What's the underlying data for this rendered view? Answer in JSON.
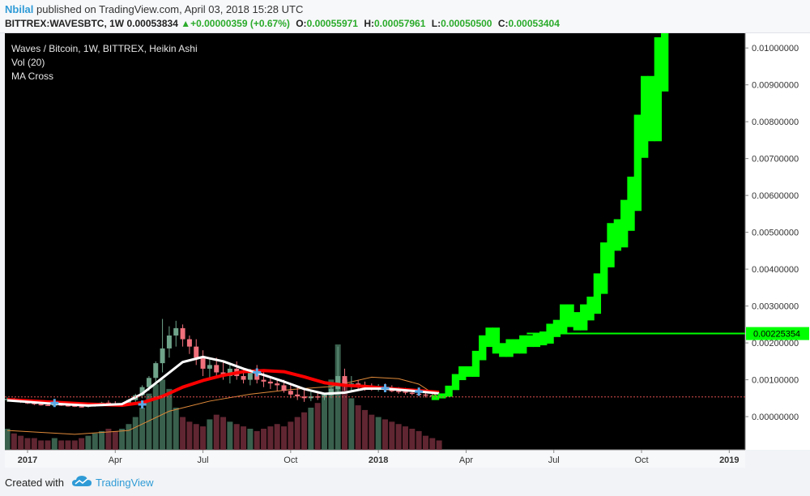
{
  "header": {
    "author": "Nbilal",
    "published": "published on TradingView.com, April 03, 2018 15:28 UTC",
    "symbol": "BITTREX:WAVESBTC, 1W",
    "price": "0.00053834",
    "change_arrow": "▲",
    "change": "+0.00000359 (+0.67%)",
    "o_label": "O:",
    "o_value": "0.00055971",
    "h_label": "H:",
    "h_value": "0.00057961",
    "l_label": "L:",
    "l_value": "0.00050500",
    "c_label": "C:",
    "c_value": "0.00053404"
  },
  "legend": {
    "title": "Waves / Bitcoin, 1W, BITTREX, Heikin Ashi",
    "vol": "Vol (20)",
    "ma": "MA Cross"
  },
  "footer": {
    "created": "Created with",
    "brand": "TradingView"
  },
  "colors": {
    "background": "#000000",
    "up": "#6fa38a",
    "down": "#f0707b",
    "projection": "#00ff00",
    "ma_fast": "#ffffff",
    "ma_slow": "#ff0000",
    "cross": "#5aa9e6",
    "vol_ma": "#e08a3a",
    "axis_text": "#333333"
  },
  "chart_data": {
    "type": "candlestick",
    "title": "Waves / Bitcoin, 1W, BITTREX, Heikin Ashi",
    "ylim": [
      -0.0009,
      0.0104
    ],
    "y_ticks": [
      "0.01000000",
      "0.00900000",
      "0.00800000",
      "0.00700000",
      "0.00600000",
      "0.00500000",
      "0.00400000",
      "0.00300000",
      "0.00200000",
      "0.00100000",
      "0.00000000"
    ],
    "y_tick_values": [
      0.01,
      0.009,
      0.008,
      0.007,
      0.006,
      0.005,
      0.004,
      0.003,
      0.002,
      0.001,
      0.0
    ],
    "x_ticks": [
      "2017",
      "Apr",
      "Jul",
      "Oct",
      "2018",
      "Apr",
      "Jul",
      "Oct",
      "2019"
    ],
    "x_tick_weeks": [
      3,
      16,
      29,
      42,
      55,
      68,
      81,
      94,
      107
    ],
    "current_price_line": 0.000534,
    "horizontal_level": {
      "value": 0.00225354,
      "label": "0.00225354",
      "from_week": 77
    },
    "candles": [
      {
        "t": 0,
        "o": 0.00045,
        "h": 0.00052,
        "l": 0.0004,
        "c": 0.00048
      },
      {
        "t": 1,
        "o": 0.00047,
        "h": 0.00051,
        "l": 0.00041,
        "c": 0.00043
      },
      {
        "t": 2,
        "o": 0.00043,
        "h": 0.00047,
        "l": 0.00037,
        "c": 0.00039
      },
      {
        "t": 3,
        "o": 0.00039,
        "h": 0.00043,
        "l": 0.00034,
        "c": 0.00037
      },
      {
        "t": 4,
        "o": 0.00037,
        "h": 0.0004,
        "l": 0.00031,
        "c": 0.00034
      },
      {
        "t": 5,
        "o": 0.00034,
        "h": 0.00038,
        "l": 0.0003,
        "c": 0.00032
      },
      {
        "t": 6,
        "o": 0.00032,
        "h": 0.00036,
        "l": 0.00029,
        "c": 0.00031
      },
      {
        "t": 7,
        "o": 0.00031,
        "h": 0.00035,
        "l": 0.00028,
        "c": 0.00033
      },
      {
        "t": 8,
        "o": 0.00033,
        "h": 0.00036,
        "l": 0.00029,
        "c": 0.00031
      },
      {
        "t": 9,
        "o": 0.00031,
        "h": 0.00034,
        "l": 0.00027,
        "c": 0.0003
      },
      {
        "t": 10,
        "o": 0.0003,
        "h": 0.00033,
        "l": 0.00026,
        "c": 0.00028
      },
      {
        "t": 11,
        "o": 0.00028,
        "h": 0.00032,
        "l": 0.00025,
        "c": 0.00027
      },
      {
        "t": 12,
        "o": 0.00027,
        "h": 0.00031,
        "l": 0.00024,
        "c": 0.0003
      },
      {
        "t": 13,
        "o": 0.0003,
        "h": 0.00036,
        "l": 0.00027,
        "c": 0.00034
      },
      {
        "t": 14,
        "o": 0.00034,
        "h": 0.0004,
        "l": 0.0003,
        "c": 0.00038
      },
      {
        "t": 15,
        "o": 0.00038,
        "h": 0.00044,
        "l": 0.00033,
        "c": 0.00036
      },
      {
        "t": 16,
        "o": 0.00036,
        "h": 0.00042,
        "l": 0.00029,
        "c": 0.00031
      },
      {
        "t": 17,
        "o": 0.00031,
        "h": 0.00037,
        "l": 0.00027,
        "c": 0.00035
      },
      {
        "t": 18,
        "o": 0.00035,
        "h": 0.00048,
        "l": 0.00032,
        "c": 0.00045
      },
      {
        "t": 19,
        "o": 0.00045,
        "h": 0.00062,
        "l": 0.0004,
        "c": 0.00058
      },
      {
        "t": 20,
        "o": 0.00058,
        "h": 0.00085,
        "l": 0.0005,
        "c": 0.0008
      },
      {
        "t": 21,
        "o": 0.0008,
        "h": 0.0011,
        "l": 0.0007,
        "c": 0.00105
      },
      {
        "t": 22,
        "o": 0.00105,
        "h": 0.0015,
        "l": 0.00095,
        "c": 0.00145
      },
      {
        "t": 23,
        "o": 0.00145,
        "h": 0.00265,
        "l": 0.0012,
        "c": 0.00185
      },
      {
        "t": 24,
        "o": 0.00185,
        "h": 0.00245,
        "l": 0.0016,
        "c": 0.0022
      },
      {
        "t": 25,
        "o": 0.0022,
        "h": 0.0026,
        "l": 0.0019,
        "c": 0.0024
      },
      {
        "t": 26,
        "o": 0.0024,
        "h": 0.0025,
        "l": 0.0019,
        "c": 0.0021
      },
      {
        "t": 27,
        "o": 0.0021,
        "h": 0.0022,
        "l": 0.0017,
        "c": 0.0019
      },
      {
        "t": 28,
        "o": 0.0019,
        "h": 0.0021,
        "l": 0.0014,
        "c": 0.0016
      },
      {
        "t": 29,
        "o": 0.0016,
        "h": 0.0018,
        "l": 0.0011,
        "c": 0.0013
      },
      {
        "t": 30,
        "o": 0.0013,
        "h": 0.0016,
        "l": 0.001,
        "c": 0.0014
      },
      {
        "t": 31,
        "o": 0.0014,
        "h": 0.0016,
        "l": 0.0011,
        "c": 0.0012
      },
      {
        "t": 32,
        "o": 0.0012,
        "h": 0.0015,
        "l": 0.001,
        "c": 0.0011
      },
      {
        "t": 33,
        "o": 0.0011,
        "h": 0.0014,
        "l": 0.0009,
        "c": 0.0013
      },
      {
        "t": 34,
        "o": 0.0013,
        "h": 0.0015,
        "l": 0.001,
        "c": 0.0011
      },
      {
        "t": 35,
        "o": 0.0011,
        "h": 0.0013,
        "l": 0.0009,
        "c": 0.001
      },
      {
        "t": 36,
        "o": 0.001,
        "h": 0.0013,
        "l": 0.00085,
        "c": 0.0012
      },
      {
        "t": 37,
        "o": 0.0012,
        "h": 0.0014,
        "l": 0.0009,
        "c": 0.001
      },
      {
        "t": 38,
        "o": 0.001,
        "h": 0.0012,
        "l": 0.0008,
        "c": 0.00095
      },
      {
        "t": 39,
        "o": 0.00095,
        "h": 0.0011,
        "l": 0.00075,
        "c": 0.0009
      },
      {
        "t": 40,
        "o": 0.0009,
        "h": 0.001,
        "l": 0.0007,
        "c": 0.00085
      },
      {
        "t": 41,
        "o": 0.00085,
        "h": 0.001,
        "l": 0.00065,
        "c": 0.0007
      },
      {
        "t": 42,
        "o": 0.0007,
        "h": 0.0009,
        "l": 0.0005,
        "c": 0.0006
      },
      {
        "t": 43,
        "o": 0.0006,
        "h": 0.0008,
        "l": 0.00045,
        "c": 0.00055
      },
      {
        "t": 44,
        "o": 0.00055,
        "h": 0.00075,
        "l": 0.0004,
        "c": 0.0005
      },
      {
        "t": 45,
        "o": 0.0005,
        "h": 0.0007,
        "l": 0.00042,
        "c": 0.00055
      },
      {
        "t": 46,
        "o": 0.00055,
        "h": 0.00068,
        "l": 0.00045,
        "c": 0.00052
      },
      {
        "t": 47,
        "o": 0.00052,
        "h": 0.00065,
        "l": 0.00045,
        "c": 0.00058
      },
      {
        "t": 48,
        "o": 0.00058,
        "h": 0.0008,
        "l": 0.0005,
        "c": 0.00075
      },
      {
        "t": 49,
        "o": 0.00075,
        "h": 0.0019,
        "l": 0.0006,
        "c": 0.0011
      },
      {
        "t": 50,
        "o": 0.0011,
        "h": 0.0013,
        "l": 0.0007,
        "c": 0.00085
      },
      {
        "t": 51,
        "o": 0.00085,
        "h": 0.0011,
        "l": 0.0007,
        "c": 0.0009
      },
      {
        "t": 52,
        "o": 0.0009,
        "h": 0.001,
        "l": 0.00075,
        "c": 0.00082
      },
      {
        "t": 53,
        "o": 0.00082,
        "h": 0.00095,
        "l": 0.0007,
        "c": 0.00078
      },
      {
        "t": 54,
        "o": 0.00078,
        "h": 0.0009,
        "l": 0.0007,
        "c": 0.00075
      },
      {
        "t": 55,
        "o": 0.00075,
        "h": 0.00088,
        "l": 0.00068,
        "c": 0.0008
      },
      {
        "t": 56,
        "o": 0.0008,
        "h": 0.0009,
        "l": 0.0007,
        "c": 0.00072
      },
      {
        "t": 57,
        "o": 0.00072,
        "h": 0.00085,
        "l": 0.00066,
        "c": 0.0007
      },
      {
        "t": 58,
        "o": 0.0007,
        "h": 0.0008,
        "l": 0.00062,
        "c": 0.00068
      },
      {
        "t": 59,
        "o": 0.00068,
        "h": 0.00078,
        "l": 0.0006,
        "c": 0.00065
      },
      {
        "t": 60,
        "o": 0.00065,
        "h": 0.00075,
        "l": 0.00058,
        "c": 0.00062
      },
      {
        "t": 61,
        "o": 0.00062,
        "h": 0.00072,
        "l": 0.00055,
        "c": 0.0006
      },
      {
        "t": 62,
        "o": 0.0006,
        "h": 0.0007,
        "l": 0.00052,
        "c": 0.00058
      },
      {
        "t": 63,
        "o": 0.00058,
        "h": 0.00068,
        "l": 0.0005,
        "c": 0.00056
      },
      {
        "t": 64,
        "o": 0.00056,
        "h": 0.00058,
        "l": 0.0005,
        "c": 0.00053
      }
    ],
    "volume": [
      9,
      7,
      6,
      5,
      5,
      4,
      4,
      5,
      4,
      4,
      4,
      5,
      6,
      7,
      8,
      9,
      8,
      9,
      11,
      14,
      18,
      24,
      28,
      30,
      26,
      18,
      14,
      12,
      11,
      10,
      13,
      15,
      14,
      12,
      11,
      10,
      9,
      8,
      9,
      10,
      11,
      10,
      12,
      14,
      16,
      18,
      20,
      24,
      30,
      45,
      30,
      22,
      19,
      17,
      15,
      14,
      13,
      12,
      11,
      10,
      9,
      8,
      6,
      5,
      4
    ],
    "volume_up": [
      true,
      false,
      false,
      false,
      false,
      false,
      false,
      true,
      false,
      false,
      false,
      false,
      true,
      true,
      true,
      false,
      false,
      true,
      true,
      true,
      true,
      true,
      true,
      true,
      true,
      true,
      false,
      false,
      false,
      false,
      true,
      false,
      false,
      true,
      false,
      false,
      true,
      false,
      false,
      false,
      false,
      false,
      false,
      false,
      false,
      true,
      false,
      true,
      true,
      true,
      false,
      true,
      false,
      false,
      false,
      true,
      false,
      false,
      false,
      false,
      false,
      false,
      false,
      false,
      false
    ],
    "ma_fast": [
      [
        0,
        0.00044
      ],
      [
        6,
        0.00036
      ],
      [
        12,
        0.0003
      ],
      [
        17,
        0.00034
      ],
      [
        20,
        0.00062
      ],
      [
        23,
        0.00105
      ],
      [
        26,
        0.00148
      ],
      [
        29,
        0.00162
      ],
      [
        32,
        0.0015
      ],
      [
        35,
        0.0013
      ],
      [
        38,
        0.00113
      ],
      [
        41,
        0.00095
      ],
      [
        44,
        0.00075
      ],
      [
        47,
        0.00062
      ],
      [
        50,
        0.00065
      ],
      [
        53,
        0.00076
      ],
      [
        56,
        0.00076
      ],
      [
        60,
        0.0007
      ],
      [
        64,
        0.00063
      ]
    ],
    "ma_slow": [
      [
        0,
        0.00046
      ],
      [
        6,
        0.0004
      ],
      [
        12,
        0.00034
      ],
      [
        17,
        0.00031
      ],
      [
        20,
        0.00038
      ],
      [
        23,
        0.00055
      ],
      [
        26,
        0.0008
      ],
      [
        29,
        0.00098
      ],
      [
        32,
        0.00112
      ],
      [
        35,
        0.00122
      ],
      [
        38,
        0.00125
      ],
      [
        41,
        0.00122
      ],
      [
        44,
        0.00108
      ],
      [
        47,
        0.00092
      ],
      [
        50,
        0.00085
      ],
      [
        53,
        0.00082
      ],
      [
        56,
        0.00077
      ],
      [
        60,
        0.00072
      ],
      [
        64,
        0.00066
      ]
    ],
    "vol_ma": [
      [
        0,
        2.5
      ],
      [
        10,
        2.0
      ],
      [
        18,
        2.5
      ],
      [
        24,
        5.0
      ],
      [
        30,
        6.3
      ],
      [
        36,
        7.2
      ],
      [
        42,
        7.8
      ],
      [
        48,
        8.2
      ],
      [
        54,
        9.4
      ],
      [
        58,
        9.2
      ],
      [
        61,
        8.5
      ],
      [
        64,
        6.8
      ]
    ],
    "crosses": [
      [
        7,
        0.00037
      ],
      [
        20,
        0.00033
      ],
      [
        37,
        0.0012
      ],
      [
        56,
        0.00077
      ],
      [
        61,
        0.00068
      ]
    ],
    "projection": [
      [
        63,
        0.0005
      ],
      [
        64,
        0.00055
      ],
      [
        65,
        0.0006
      ],
      [
        66,
        0.0008
      ],
      [
        67,
        0.0011
      ],
      [
        68,
        0.0013
      ],
      [
        69,
        0.0012
      ],
      [
        70,
        0.0017
      ],
      [
        71,
        0.0021
      ],
      [
        72,
        0.0023
      ],
      [
        73,
        0.0019
      ],
      [
        74,
        0.0018
      ],
      [
        75,
        0.002
      ],
      [
        76,
        0.0019
      ],
      [
        77,
        0.0021
      ],
      [
        78,
        0.0021
      ],
      [
        79,
        0.00215
      ],
      [
        80,
        0.0022
      ],
      [
        81,
        0.0024
      ],
      [
        82,
        0.0025
      ],
      [
        83,
        0.0029
      ],
      [
        84,
        0.0027
      ],
      [
        85,
        0.0026
      ],
      [
        86,
        0.0029
      ],
      [
        87,
        0.0031
      ],
      [
        88,
        0.0037
      ],
      [
        89,
        0.0045
      ],
      [
        90,
        0.005
      ],
      [
        91,
        0.0051
      ],
      [
        92,
        0.0056
      ],
      [
        93,
        0.0062
      ],
      [
        94,
        0.0078
      ],
      [
        95,
        0.0088
      ],
      [
        96,
        0.0083
      ],
      [
        97,
        0.0098
      ],
      [
        98,
        0.0104
      ]
    ]
  }
}
